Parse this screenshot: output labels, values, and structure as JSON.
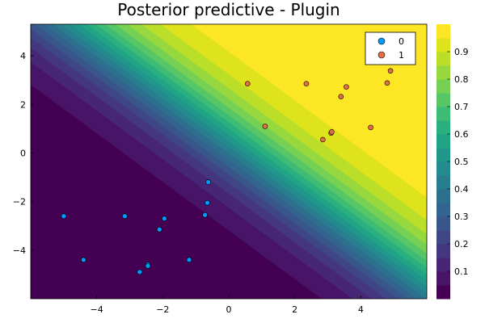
{
  "chart_data": {
    "type": "contour",
    "title": "Posterior predictive - Plugin",
    "xlabel": "",
    "ylabel": "",
    "xlim": [
      -6,
      6
    ],
    "ylim": [
      -6,
      5.3
    ],
    "x_ticks": [
      -4,
      -2,
      0,
      2,
      4
    ],
    "y_ticks": [
      -4,
      -2,
      0,
      2,
      4
    ],
    "grid": false,
    "surface": {
      "description": "predictive probability, logistic in x+y",
      "w": [
        0.8,
        0.8
      ],
      "b": -0.4,
      "levels": [
        0.0,
        0.05,
        0.1,
        0.15,
        0.2,
        0.25,
        0.3,
        0.35,
        0.4,
        0.45,
        0.5,
        0.55,
        0.6,
        0.65,
        0.7,
        0.75,
        0.8,
        0.85,
        0.9,
        0.95,
        1.0
      ]
    },
    "colorbar": {
      "ticks": [
        0.1,
        0.2,
        0.3,
        0.4,
        0.5,
        0.6,
        0.7,
        0.8,
        0.9
      ],
      "tick_labels": [
        "0.1",
        "0.2",
        "0.3",
        "0.4",
        "0.5",
        "0.6",
        "0.7",
        "0.8",
        "0.9"
      ],
      "range": [
        0,
        1
      ]
    },
    "legend": {
      "position": "top-right"
    },
    "series": [
      {
        "name": "0",
        "color": "#009AFA",
        "x": [
          -5.0,
          -4.4,
          -3.15,
          -2.7,
          -2.45,
          -2.45,
          -2.1,
          -1.95,
          -1.2,
          -0.72,
          -0.65,
          -0.62
        ],
        "y": [
          -2.6,
          -4.4,
          -2.6,
          -4.9,
          -4.6,
          -4.65,
          -3.15,
          -2.7,
          -4.4,
          -2.55,
          -2.05,
          -1.2
        ]
      },
      {
        "name": "1",
        "color": "#E36F47",
        "x": [
          0.57,
          1.1,
          2.35,
          2.85,
          3.1,
          3.12,
          3.4,
          3.56,
          4.3,
          4.8,
          4.9
        ],
        "y": [
          2.85,
          1.1,
          2.85,
          0.55,
          0.82,
          0.87,
          2.32,
          2.72,
          1.05,
          2.88,
          3.38
        ]
      }
    ]
  }
}
